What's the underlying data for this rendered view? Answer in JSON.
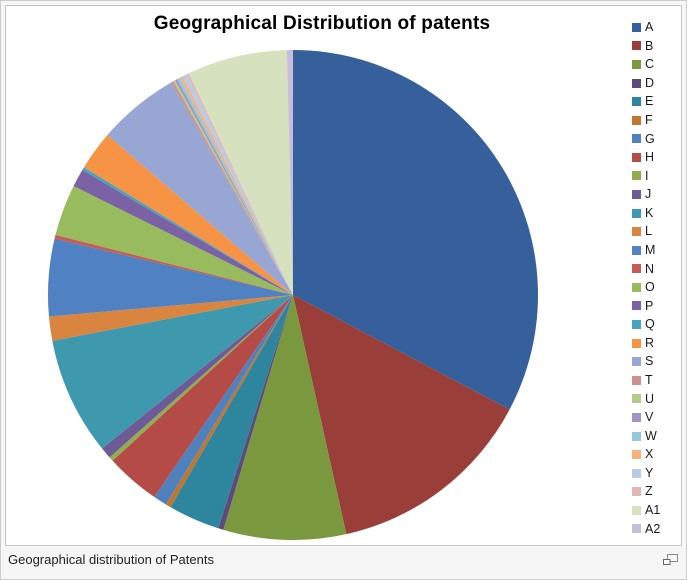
{
  "frame": {
    "border_color": "#cccccc",
    "background": "#f6f6f6",
    "image_border_color": "#c6c6c6",
    "image_background": "#ffffff"
  },
  "caption": {
    "text": "Geographical distribution of Patents",
    "magnify_icon": "magnify-clip-icon"
  },
  "chart_data": {
    "type": "pie",
    "title": "Geographical Distribution of patents",
    "legend_position": "right",
    "start_angle_deg": 0,
    "direction": "clockwise",
    "data_labels": "none",
    "note": "values are percentages estimated from measured slice angles; no numeric labels are shown in the image",
    "categories": [
      "A",
      "B",
      "C",
      "D",
      "E",
      "F",
      "G",
      "H",
      "I",
      "J",
      "K",
      "L",
      "M",
      "N",
      "O",
      "P",
      "Q",
      "R",
      "S",
      "T",
      "U",
      "V",
      "W",
      "X",
      "Y",
      "Z",
      "A1",
      "A2"
    ],
    "values": [
      32.8,
      13.8,
      8.1,
      0.35,
      3.4,
      0.35,
      0.9,
      3.6,
      0.3,
      0.75,
      7.8,
      1.6,
      5.1,
      0.25,
      3.4,
      1.2,
      0.2,
      2.6,
      5.4,
      0.15,
      0.15,
      0.15,
      0.2,
      0.2,
      0.3,
      0.15,
      6.6,
      0.4
    ],
    "colors": [
      "#36609B",
      "#9A3E39",
      "#7A993F",
      "#5F497B",
      "#2E869E",
      "#C0762F",
      "#4F81BD",
      "#B54B47",
      "#92AC52",
      "#6D5A96",
      "#3F99AE",
      "#D98540",
      "#5081C3",
      "#C75B55",
      "#98BC5D",
      "#7A62A5",
      "#46A5BC",
      "#F79345",
      "#98A6D4",
      "#CC908D",
      "#B5CB8B",
      "#A294C4",
      "#94C9DD",
      "#F7B17F",
      "#BACBE6",
      "#E2B8B6",
      "#D6E2BF",
      "#C7BDDA"
    ],
    "title_color": "#000000",
    "legend_text_color": "#1a1a1a"
  }
}
